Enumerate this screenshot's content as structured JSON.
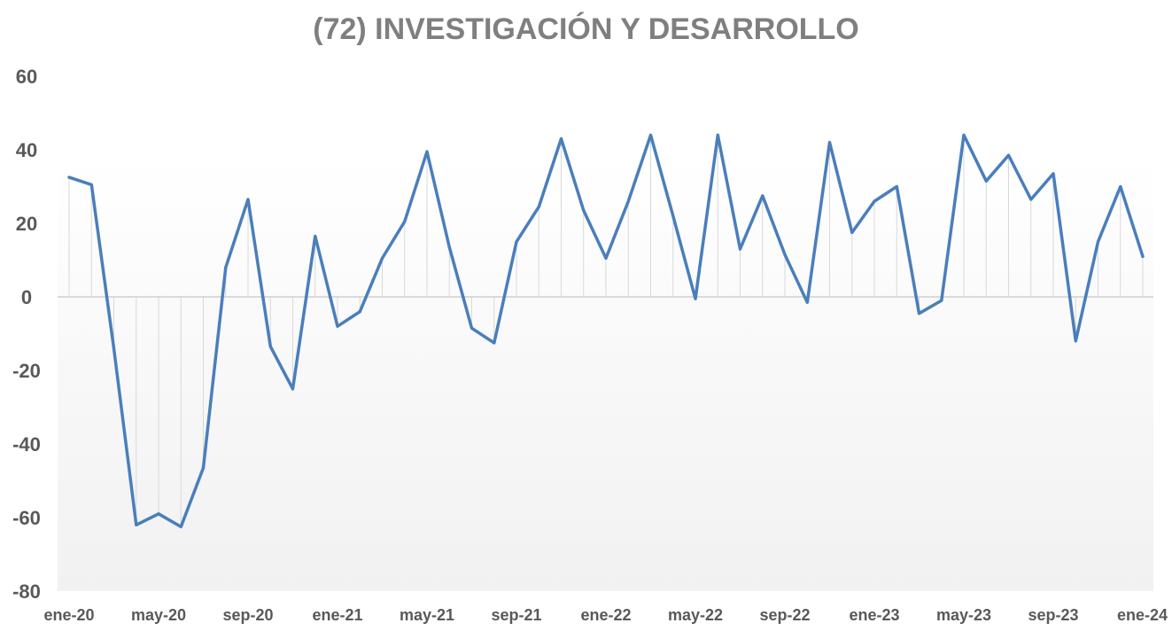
{
  "chart_data": {
    "type": "line",
    "title": "(72) INVESTIGACIÓN Y DESARROLLO",
    "xlabel": "",
    "ylabel": "",
    "ylim": [
      -80,
      60
    ],
    "yticks": [
      60,
      40,
      20,
      0,
      -20,
      -40,
      -60,
      -80
    ],
    "xtick_labels": [
      "ene-20",
      "may-20",
      "sep-20",
      "ene-21",
      "may-21",
      "sep-21",
      "ene-22",
      "may-22",
      "sep-22",
      "ene-23",
      "may-23",
      "sep-23",
      "ene-24"
    ],
    "x": [
      "ene-20",
      "feb-20",
      "mar-20",
      "abr-20",
      "may-20",
      "jun-20",
      "jul-20",
      "ago-20",
      "sep-20",
      "oct-20",
      "nov-20",
      "dic-20",
      "ene-21",
      "feb-21",
      "mar-21",
      "abr-21",
      "may-21",
      "jun-21",
      "jul-21",
      "ago-21",
      "sep-21",
      "oct-21",
      "nov-21",
      "dic-21",
      "ene-22",
      "feb-22",
      "mar-22",
      "abr-22",
      "may-22",
      "jun-22",
      "jul-22",
      "ago-22",
      "sep-22",
      "oct-22",
      "nov-22",
      "dic-22",
      "ene-23",
      "feb-23",
      "mar-23",
      "abr-23",
      "may-23",
      "jun-23",
      "jul-23",
      "ago-23",
      "sep-23",
      "oct-23",
      "nov-23",
      "dic-23",
      "ene-24"
    ],
    "series": [
      {
        "color": "#4a7ebb",
        "values": [
          32.5,
          30.5,
          -14,
          -62,
          -59,
          -62.5,
          -46.5,
          8,
          26.5,
          -13.5,
          -25,
          16.5,
          -8,
          -4,
          10.5,
          20.5,
          39.5,
          13.5,
          -8.5,
          -12.5,
          15,
          24.5,
          43,
          23.5,
          10.5,
          26,
          44,
          22,
          -0.5,
          44,
          13,
          27.5,
          11.5,
          -1.5,
          42,
          17.5,
          26,
          30,
          -4.5,
          -1,
          44,
          31.5,
          38.5,
          26.5,
          33.5,
          -12,
          15,
          30,
          11
        ]
      }
    ],
    "grid": false,
    "drop_lines": true,
    "legend": "none"
  }
}
